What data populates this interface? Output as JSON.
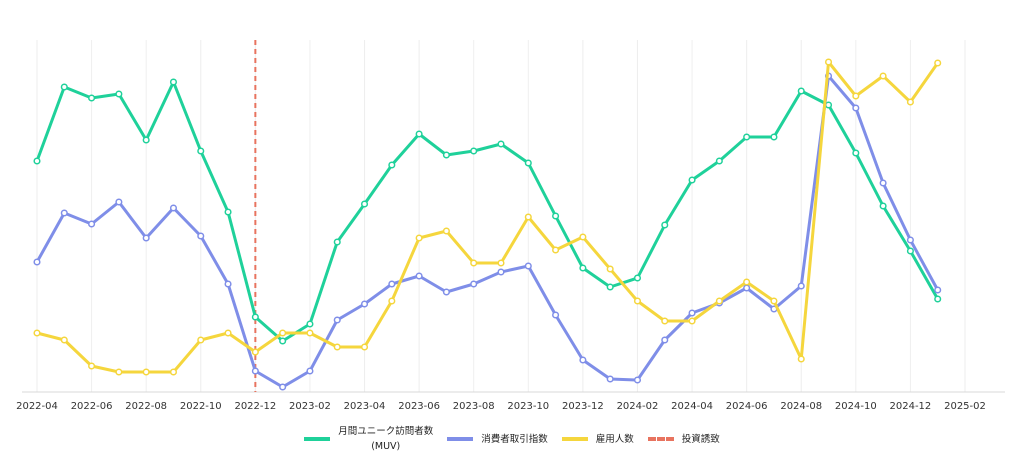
{
  "chart_data": {
    "type": "line",
    "x": [
      "2022-04",
      "2022-05",
      "2022-06",
      "2022-07",
      "2022-08",
      "2022-09",
      "2022-10",
      "2022-11",
      "2022-12",
      "2023-01",
      "2023-02",
      "2023-03",
      "2023-04",
      "2023-05",
      "2023-06",
      "2023-07",
      "2023-08",
      "2023-09",
      "2023-10",
      "2023-11",
      "2023-12",
      "2024-01",
      "2024-02",
      "2024-03",
      "2024-04",
      "2024-05",
      "2024-06",
      "2024-07",
      "2024-08",
      "2024-09",
      "2024-10",
      "2024-11",
      "2024-12",
      "2025-01"
    ],
    "xticks": [
      "2022-04",
      "2022-06",
      "2022-08",
      "2022-10",
      "2022-12",
      "2023-02",
      "2023-04",
      "2023-06",
      "2023-08",
      "2023-10",
      "2023-12",
      "2024-02",
      "2024-04",
      "2024-06",
      "2024-08",
      "2024-10",
      "2024-12",
      "2025-02"
    ],
    "ylim": [
      0,
      352
    ],
    "grid": true,
    "series": [
      {
        "name": "月間ユニーク訪問者数\n(MUV)",
        "color": "#1fd19a",
        "values": [
          231,
          305,
          294,
          298,
          252,
          310,
          241,
          180,
          75,
          51,
          68,
          150,
          188,
          227,
          258,
          237,
          241,
          248,
          229,
          176,
          124,
          105,
          114,
          167,
          212,
          231,
          255,
          255,
          301,
          287,
          239,
          186,
          141,
          93
        ]
      },
      {
        "name": "消費者取引指数",
        "color": "#7f8ee8",
        "values": [
          130,
          179,
          168,
          190,
          154,
          184,
          156,
          108,
          21,
          5,
          21,
          72,
          88,
          108,
          116,
          100,
          108,
          120,
          126,
          77,
          32,
          13,
          12,
          52,
          79,
          89,
          104,
          83,
          106,
          316,
          284,
          209,
          152,
          102
        ]
      },
      {
        "name": "雇用人数",
        "color": "#f5d63d",
        "values": [
          59,
          52,
          26,
          20,
          20,
          20,
          52,
          59,
          40,
          59,
          59,
          45,
          45,
          91,
          154,
          161,
          129,
          129,
          175,
          142,
          155,
          123,
          91,
          71,
          71,
          91,
          110,
          91,
          33,
          330,
          296,
          316,
          290,
          329
        ]
      }
    ],
    "event": {
      "name": "投資誘致",
      "x": "2022-12",
      "color": "#e8735f"
    }
  }
}
